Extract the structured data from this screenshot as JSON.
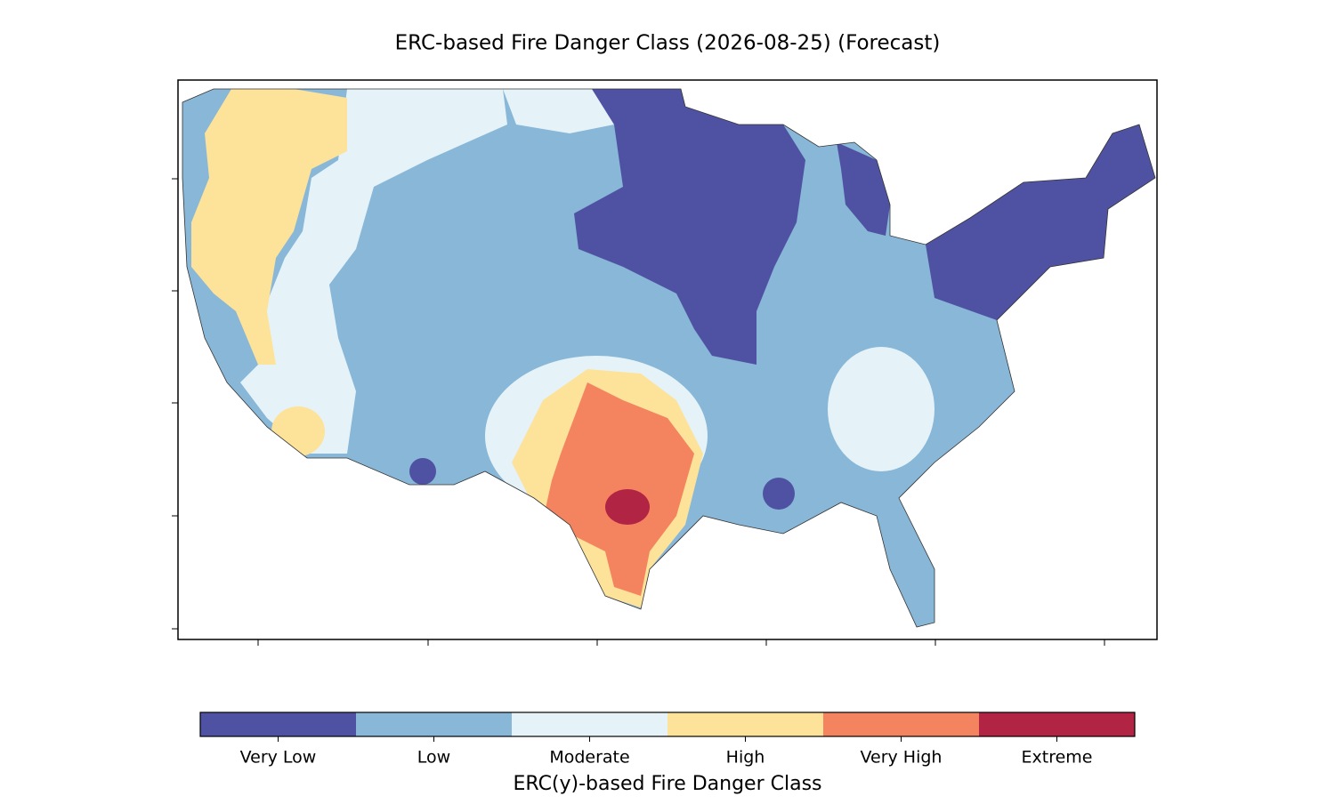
{
  "title": "ERC-based Fire Danger Class (2026-08-25) (Forecast)",
  "colorbar": {
    "label": "ERC(y)-based Fire Danger Class",
    "classes": [
      {
        "label": "Very Low",
        "color": "#4f52a3"
      },
      {
        "label": "Low",
        "color": "#88b7d7"
      },
      {
        "label": "Moderate",
        "color": "#e5f3f9"
      },
      {
        "label": "High",
        "color": "#fde29a"
      },
      {
        "label": "Very High",
        "color": "#f4845f"
      },
      {
        "label": "Extreme",
        "color": "#b22443"
      }
    ]
  }
}
